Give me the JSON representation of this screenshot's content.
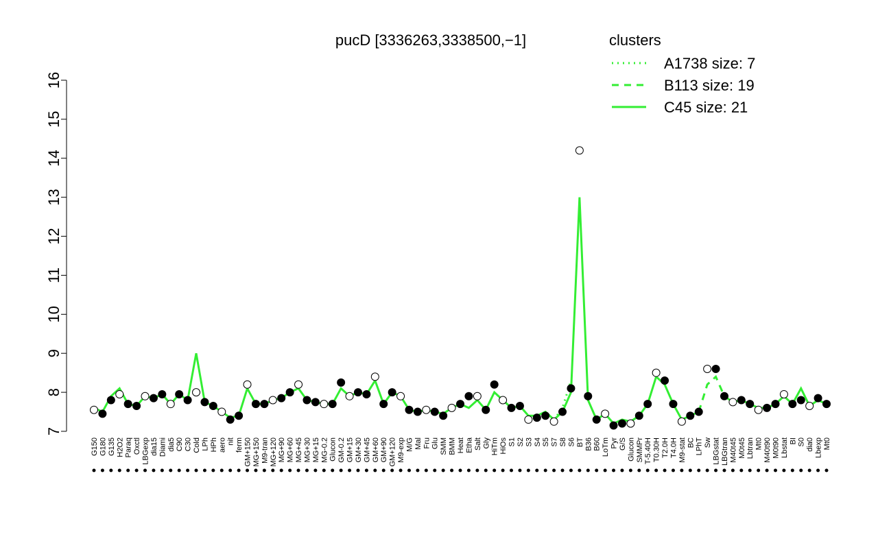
{
  "chart_data": {
    "type": "line",
    "title": "pucD [3336263,3338500,−1]",
    "legend_title": "clusters",
    "categories": [
      "G150",
      "G180",
      "G135",
      "H2O2",
      "Paraq",
      "Oxctl",
      "LBGexp",
      "dia15",
      "Diami",
      "dia5",
      "C90",
      "C30",
      "Cold",
      "LPh",
      "HPh",
      "aero",
      "nit",
      "ferm",
      "GM+150",
      "MG+150",
      "M9-tran",
      "MG+120",
      "MG+90",
      "MG+60",
      "MG+45",
      "MG+30",
      "MG+15",
      "MG-0.2",
      "Glucon",
      "GM-0.2",
      "GM+15",
      "GM+30",
      "GM+45",
      "GM+60",
      "GM+90",
      "GM+120",
      "M9-exp",
      "M/G",
      "Mal",
      "Fru",
      "Glu",
      "SMM",
      "BMM",
      "Heat",
      "Etha",
      "Salt",
      "Gly",
      "HiTm",
      "HiOs",
      "S1",
      "S2",
      "S3",
      "S4",
      "S5",
      "S7",
      "S8",
      "S6",
      "BT",
      "B36",
      "B60",
      "LoTm",
      "Pyr",
      "G/S",
      "Glucon",
      "SMMPr",
      "T-5.40H",
      "T0.30H",
      "T2.0H",
      "T4.0H",
      "M9-stat",
      "BC",
      "LPhT",
      "Sw",
      "LBGstat",
      "LBGtran",
      "M40t45",
      "M0t45",
      "Lbtran",
      "Mt0",
      "M40t90",
      "M0t90",
      "Lbstat",
      "BI",
      "S0",
      "dia0",
      "Lbexp",
      "Mt0"
    ],
    "values": [
      7.55,
      7.45,
      7.8,
      7.95,
      7.7,
      7.65,
      7.9,
      7.85,
      7.95,
      7.7,
      7.95,
      7.8,
      8.0,
      7.75,
      7.65,
      7.5,
      7.3,
      7.4,
      8.2,
      7.7,
      7.7,
      7.8,
      7.85,
      8.0,
      8.2,
      7.8,
      7.75,
      7.7,
      7.7,
      8.25,
      7.9,
      8.0,
      7.95,
      8.4,
      7.7,
      8.0,
      7.9,
      7.55,
      7.5,
      7.55,
      7.5,
      7.4,
      7.6,
      7.7,
      7.9,
      7.9,
      7.55,
      8.2,
      7.8,
      7.6,
      7.65,
      7.3,
      7.35,
      7.4,
      7.25,
      7.5,
      8.1,
      14.2,
      7.9,
      7.3,
      7.45,
      7.15,
      7.2,
      7.2,
      7.4,
      7.7,
      8.5,
      8.3,
      7.7,
      7.25,
      7.4,
      7.5,
      8.6,
      8.6,
      7.9,
      7.75,
      7.8,
      7.7,
      7.55,
      7.6,
      7.7,
      7.95,
      7.7,
      7.8,
      7.65,
      7.85,
      7.7
    ],
    "point_color": "#000000",
    "series": [
      {
        "name": "A1738 size: 7",
        "color": "#33ee33",
        "linestyle": "dotted",
        "values": [
          null,
          null,
          null,
          null,
          null,
          null,
          null,
          null,
          null,
          null,
          null,
          null,
          null,
          null,
          null,
          null,
          null,
          null,
          null,
          null,
          null,
          null,
          null,
          null,
          null,
          null,
          null,
          null,
          null,
          null,
          null,
          null,
          null,
          null,
          null,
          null,
          null,
          null,
          null,
          null,
          null,
          null,
          null,
          null,
          null,
          null,
          null,
          null,
          null,
          null,
          null,
          null,
          null,
          null,
          7.3,
          7.6,
          8.3,
          null,
          null,
          null,
          null,
          null,
          null,
          null,
          null,
          null,
          null,
          null,
          null,
          null,
          null,
          null,
          null,
          null,
          null,
          null,
          null,
          null,
          null,
          null,
          null,
          null,
          null,
          null,
          null,
          null,
          null
        ]
      },
      {
        "name": "B113 size: 19",
        "color": "#33ee33",
        "linestyle": "dashed",
        "values": [
          null,
          null,
          null,
          null,
          null,
          null,
          null,
          null,
          null,
          null,
          null,
          null,
          null,
          null,
          null,
          null,
          null,
          null,
          null,
          null,
          null,
          null,
          null,
          null,
          null,
          null,
          null,
          null,
          null,
          null,
          null,
          null,
          null,
          null,
          null,
          null,
          null,
          null,
          null,
          null,
          null,
          null,
          null,
          null,
          null,
          null,
          null,
          null,
          null,
          null,
          null,
          null,
          null,
          null,
          null,
          null,
          null,
          null,
          null,
          null,
          null,
          null,
          null,
          null,
          null,
          null,
          null,
          null,
          null,
          null,
          null,
          7.5,
          8.2,
          8.4,
          7.9,
          null,
          null,
          null,
          null,
          null,
          null,
          null,
          null,
          null,
          null,
          null,
          null
        ]
      },
      {
        "name": "C45 size: 21",
        "color": "#33ee33",
        "linestyle": "solid",
        "values": [
          7.6,
          7.5,
          7.9,
          8.1,
          7.7,
          7.65,
          7.9,
          7.85,
          7.95,
          7.7,
          7.95,
          7.8,
          9.0,
          7.75,
          7.65,
          7.5,
          7.35,
          7.4,
          8.1,
          7.7,
          7.7,
          7.8,
          7.85,
          8.0,
          8.1,
          7.8,
          7.75,
          7.7,
          7.7,
          8.1,
          7.9,
          8.0,
          7.95,
          8.3,
          7.7,
          8.0,
          7.9,
          7.55,
          7.5,
          7.55,
          7.5,
          7.45,
          7.6,
          7.7,
          7.6,
          7.8,
          7.55,
          8.0,
          7.8,
          7.6,
          7.65,
          7.4,
          7.4,
          7.5,
          7.3,
          7.5,
          8.0,
          13.0,
          7.8,
          7.3,
          7.45,
          7.2,
          7.3,
          7.25,
          7.4,
          7.7,
          8.4,
          8.2,
          7.7,
          7.3,
          7.4,
          7.5,
          null,
          null,
          7.9,
          7.75,
          7.8,
          7.7,
          7.6,
          7.6,
          7.7,
          7.9,
          7.7,
          8.1,
          7.65,
          7.8,
          7.7
        ]
      }
    ],
    "ylim": [
      7,
      16
    ],
    "yticks": [
      7,
      8,
      9,
      10,
      11,
      12,
      13,
      14,
      15,
      16
    ]
  }
}
